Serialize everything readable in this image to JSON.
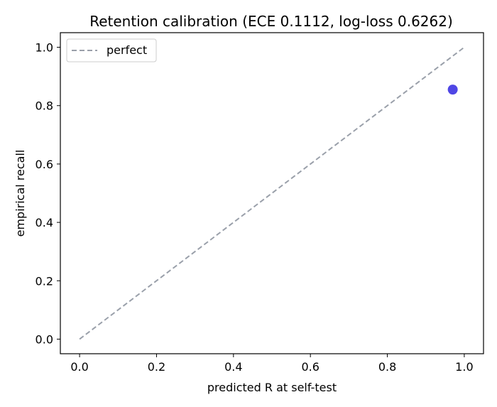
{
  "chart_data": {
    "type": "scatter",
    "title": "Retention calibration (ECE 0.1112, log-loss 0.6262)",
    "xlabel": "predicted R at self-test",
    "ylabel": "empirical recall",
    "xlim": [
      -0.05,
      1.05
    ],
    "ylim": [
      -0.05,
      1.05
    ],
    "x_ticks": [
      "0.0",
      "0.2",
      "0.4",
      "0.6",
      "0.8",
      "1.0"
    ],
    "y_ticks": [
      "0.0",
      "0.2",
      "0.4",
      "0.6",
      "0.8",
      "1.0"
    ],
    "grid": false,
    "legend": {
      "position": "top-left",
      "entries": [
        "perfect"
      ]
    },
    "series": [
      {
        "name": "perfect",
        "kind": "line",
        "style": "dashed",
        "color": "#9aa0aa",
        "x": [
          0,
          1
        ],
        "y": [
          0,
          1
        ]
      },
      {
        "kind": "scatter",
        "color": "#4f46e5",
        "x": [
          0.97
        ],
        "y": [
          0.855
        ]
      }
    ]
  }
}
